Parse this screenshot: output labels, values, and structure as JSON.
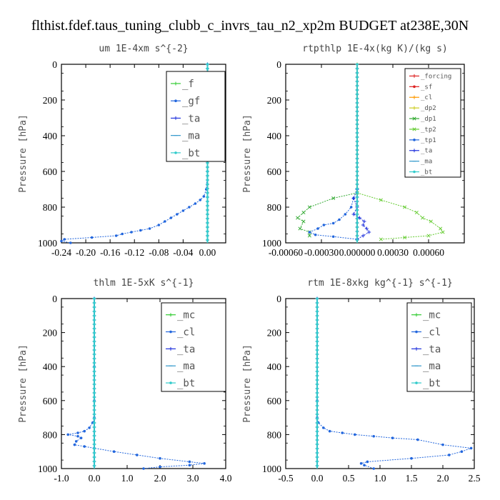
{
  "title": "flthist.fdef.taus_tuning_clubb_c_invrs_tau_n2_xp2m  BUDGET at238E,30N",
  "chart_data": [
    {
      "type": "line",
      "title": "um  1E-4xm s^{-2}",
      "ylabel": "Pressure [hPa]",
      "xlim": [
        -0.24,
        0.03
      ],
      "ylim": [
        1000,
        0
      ],
      "xticks": [
        -0.24,
        -0.2,
        -0.16,
        -0.12,
        -0.08,
        -0.04,
        0.0
      ],
      "xtick_labels": [
        "-0.24",
        "-0.20",
        "-0.16",
        "-0.12",
        "-0.08",
        "-0.04",
        "0.00"
      ],
      "yticks": [
        0,
        200,
        400,
        600,
        800,
        1000
      ],
      "ytick_labels": [
        "0",
        "200",
        "400",
        "600",
        "800",
        "1000"
      ],
      "legend_position": "top-right",
      "series": [
        {
          "name": "_f",
          "color": "#33cc33",
          "marker": "+",
          "x": [
            0.0,
            0.0
          ],
          "y": [
            0,
            1000
          ]
        },
        {
          "name": "_gf",
          "color": "#2266dd",
          "marker": "*",
          "x": [
            0.0,
            0.0,
            0.0,
            0.0,
            0.0,
            0.0,
            -0.002,
            -0.006,
            -0.012,
            -0.02,
            -0.03,
            -0.04,
            -0.05,
            -0.06,
            -0.07,
            -0.08,
            -0.095,
            -0.11,
            -0.125,
            -0.14,
            -0.15,
            -0.19,
            -0.235,
            -0.24,
            -0.225
          ],
          "y": [
            0,
            200,
            300,
            400,
            500,
            600,
            700,
            740,
            760,
            780,
            800,
            820,
            840,
            860,
            880,
            900,
            920,
            930,
            940,
            950,
            960,
            970,
            980,
            990,
            1000
          ]
        },
        {
          "name": "_ta",
          "color": "#2233dd",
          "marker": "+",
          "x": [
            0.0,
            0.003,
            0.002,
            0.0
          ],
          "y": [
            0,
            200,
            240,
            300
          ]
        },
        {
          "name": "_ma",
          "color": "#3399cc",
          "marker": "-",
          "x": [
            0.0,
            0.0
          ],
          "y": [
            0,
            1000
          ]
        },
        {
          "name": "_bt",
          "color": "#33cccc",
          "marker": "*",
          "x": [
            0.0,
            0.0
          ],
          "y": [
            0,
            1000
          ]
        }
      ]
    },
    {
      "type": "line",
      "title": "rtpthlp  1E-4x(kg K)/(kg s)",
      "ylabel": "Pressure [hPa]",
      "xlim": [
        -0.0006,
        0.0009
      ],
      "ylim": [
        1000,
        0
      ],
      "xticks": [
        -0.0006,
        -0.0003,
        0.0,
        0.0003,
        0.0006
      ],
      "xtick_labels": [
        "-0.00060",
        "-0.00030",
        "0.000000",
        "0.00030",
        "0.00060"
      ],
      "yticks": [
        0,
        200,
        400,
        600,
        800,
        1000
      ],
      "ytick_labels": [
        "0",
        "200",
        "400",
        "600",
        "800",
        "1000"
      ],
      "legend_position": "top-right",
      "series": [
        {
          "name": "_forcing",
          "color": "#dd2222",
          "marker": "+",
          "x": [
            0.0,
            0.0
          ],
          "y": [
            0,
            1000
          ]
        },
        {
          "name": "_sf",
          "color": "#dd2222",
          "marker": "*",
          "x": [
            0.0,
            0.0
          ],
          "y": [
            0,
            1000
          ]
        },
        {
          "name": "_cl",
          "color": "#ff9900",
          "marker": "+",
          "x": [
            0.0,
            0.0
          ],
          "y": [
            0,
            1000
          ]
        },
        {
          "name": "_dp2",
          "color": "#cccc22",
          "marker": "+",
          "x": [
            0.0,
            0.0
          ],
          "y": [
            0,
            1000
          ]
        },
        {
          "name": "_dp1",
          "color": "#33aa33",
          "marker": "x",
          "x": [
            0.0,
            -0.0002,
            -0.0004,
            -0.00045,
            -0.0005,
            -0.00045,
            -0.00048,
            -0.0004,
            -0.0004
          ],
          "y": [
            720,
            750,
            800,
            830,
            860,
            880,
            920,
            940,
            960
          ]
        },
        {
          "name": "_tp2",
          "color": "#66cc33",
          "marker": "x",
          "x": [
            0.0,
            0.0002,
            0.0004,
            0.0005,
            0.00055,
            0.00062,
            0.0007,
            0.00072,
            0.0006,
            0.0004,
            0.0002
          ],
          "y": [
            720,
            760,
            800,
            830,
            860,
            880,
            920,
            940,
            960,
            970,
            980
          ]
        },
        {
          "name": "_tp1",
          "color": "#2266dd",
          "marker": "*",
          "x": [
            0.0,
            -3e-05,
            -5e-05,
            -0.0001,
            -0.00015,
            -0.0002,
            -0.00028,
            -0.00033,
            -0.0004,
            -0.00035,
            -0.0002,
            0.0
          ],
          "y": [
            700,
            750,
            800,
            840,
            870,
            890,
            900,
            920,
            940,
            955,
            965,
            980
          ]
        },
        {
          "name": "_ta",
          "color": "#2233dd",
          "marker": "+",
          "x": [
            0.0,
            -3e-05,
            0.0,
            -3e-05,
            2e-05,
            6e-05,
            5e-05,
            8e-05,
            0.0001,
            5e-05,
            0.0
          ],
          "y": [
            700,
            750,
            800,
            840,
            860,
            880,
            900,
            920,
            940,
            960,
            980
          ]
        },
        {
          "name": "_ma",
          "color": "#3399cc",
          "marker": "-",
          "x": [
            0.0,
            0.0
          ],
          "y": [
            0,
            1000
          ]
        },
        {
          "name": "_bt",
          "color": "#33cccc",
          "marker": "*",
          "x": [
            0.0,
            0.0
          ],
          "y": [
            0,
            1000
          ]
        }
      ]
    },
    {
      "type": "line",
      "title": "thlm  1E-5xK s^{-1}",
      "ylabel": "Pressure [hPa]",
      "xlim": [
        -1.0,
        4.0
      ],
      "ylim": [
        1000,
        0
      ],
      "xticks": [
        -1.0,
        0.0,
        1.0,
        2.0,
        3.0,
        4.0
      ],
      "xtick_labels": [
        "-1.0",
        "0.0",
        "1.0",
        "2.0",
        "3.0",
        "4.0"
      ],
      "yticks": [
        0,
        200,
        400,
        600,
        800,
        1000
      ],
      "ytick_labels": [
        "0",
        "200",
        "400",
        "600",
        "800",
        "1000"
      ],
      "legend_position": "top-right",
      "series": [
        {
          "name": "_mc",
          "color": "#33cc33",
          "marker": "+",
          "x": [
            0.0,
            0.0
          ],
          "y": [
            0,
            1000
          ]
        },
        {
          "name": "_cl",
          "color": "#2266dd",
          "marker": "*",
          "x": [
            0.0,
            0.0,
            0.0,
            0.0,
            -0.05,
            -0.15,
            -0.3,
            -0.5,
            -0.8,
            -0.5,
            -0.4,
            -0.55,
            -0.6,
            -0.3,
            0.0,
            0.6,
            1.3,
            2.0,
            2.9,
            3.35,
            2.9,
            2.0,
            1.5
          ],
          "y": [
            0,
            400,
            600,
            700,
            730,
            760,
            780,
            790,
            800,
            810,
            820,
            840,
            860,
            870,
            880,
            900,
            920,
            940,
            960,
            970,
            980,
            990,
            1000
          ]
        },
        {
          "name": "_ta",
          "color": "#2233dd",
          "marker": "+",
          "x": [
            0.0,
            0.0
          ],
          "y": [
            0,
            1000
          ]
        },
        {
          "name": "_ma",
          "color": "#3399cc",
          "marker": "-",
          "x": [
            0.0,
            0.0
          ],
          "y": [
            0,
            1000
          ]
        },
        {
          "name": "_bt",
          "color": "#33cccc",
          "marker": "*",
          "x": [
            0.0,
            0.0
          ],
          "y": [
            0,
            1000
          ]
        }
      ]
    },
    {
      "type": "line",
      "title": "rtm  1E-8xkg kg^{-1} s^{-1}",
      "ylabel": "Pressure [hPa]",
      "xlim": [
        -0.5,
        2.5
      ],
      "ylim": [
        1000,
        0
      ],
      "xticks": [
        -0.5,
        0.0,
        0.5,
        1.0,
        1.5,
        2.0,
        2.5
      ],
      "xtick_labels": [
        "-0.5",
        "0.0",
        "0.5",
        "1.0",
        "1.5",
        "2.0",
        "2.5"
      ],
      "yticks": [
        0,
        200,
        400,
        600,
        800,
        1000
      ],
      "ytick_labels": [
        "0",
        "200",
        "400",
        "600",
        "800",
        "1000"
      ],
      "legend_position": "top-right",
      "series": [
        {
          "name": "_mc",
          "color": "#33cc33",
          "marker": "+",
          "x": [
            0.0,
            0.0
          ],
          "y": [
            0,
            1000
          ]
        },
        {
          "name": "_cl",
          "color": "#2266dd",
          "marker": "*",
          "x": [
            0.0,
            0.0,
            0.0,
            0.02,
            0.1,
            0.2,
            0.4,
            0.6,
            0.9,
            1.2,
            1.6,
            2.0,
            2.45,
            2.3,
            2.1,
            1.5,
            0.8,
            0.7,
            0.75,
            0.9
          ],
          "y": [
            0,
            600,
            700,
            730,
            760,
            780,
            790,
            800,
            810,
            820,
            830,
            860,
            880,
            900,
            920,
            940,
            960,
            970,
            980,
            1000
          ]
        },
        {
          "name": "_ta",
          "color": "#2233dd",
          "marker": "+",
          "x": [
            0.0,
            0.0
          ],
          "y": [
            0,
            1000
          ]
        },
        {
          "name": "_ma",
          "color": "#3399cc",
          "marker": "-",
          "x": [
            0.0,
            0.0
          ],
          "y": [
            0,
            1000
          ]
        },
        {
          "name": "_bt",
          "color": "#33cccc",
          "marker": "*",
          "x": [
            0.0,
            0.0
          ],
          "y": [
            0,
            1000
          ]
        }
      ]
    }
  ]
}
